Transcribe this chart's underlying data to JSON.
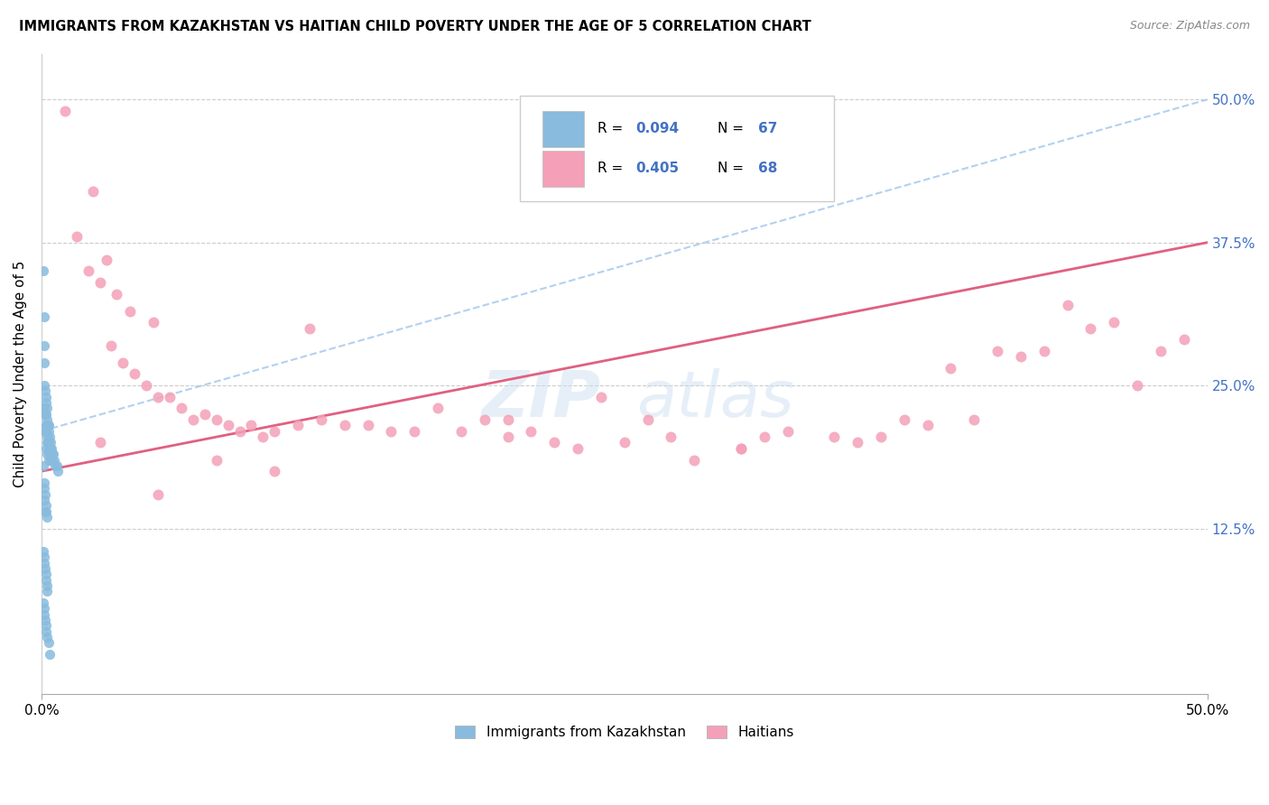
{
  "title": "IMMIGRANTS FROM KAZAKHSTAN VS HAITIAN CHILD POVERTY UNDER THE AGE OF 5 CORRELATION CHART",
  "source": "Source: ZipAtlas.com",
  "ylabel": "Child Poverty Under the Age of 5",
  "xlim": [
    0.0,
    0.5
  ],
  "ylim": [
    -0.02,
    0.54
  ],
  "ytick_labels": [
    "12.5%",
    "25.0%",
    "37.5%",
    "50.0%"
  ],
  "ytick_values": [
    0.125,
    0.25,
    0.375,
    0.5
  ],
  "color_blue": "#88bbdd",
  "color_pink": "#f4a0b8",
  "color_trendline_blue": "#99bbdd",
  "color_trendline_pink": "#e06080",
  "color_right_labels": "#4472c4",
  "kaz_x": [
    0.0008,
    0.001,
    0.001,
    0.0012,
    0.0012,
    0.0012,
    0.0015,
    0.0015,
    0.0015,
    0.0018,
    0.0018,
    0.002,
    0.002,
    0.002,
    0.002,
    0.0022,
    0.0022,
    0.0022,
    0.0025,
    0.0025,
    0.0025,
    0.0028,
    0.0028,
    0.003,
    0.003,
    0.003,
    0.0032,
    0.0032,
    0.0035,
    0.0035,
    0.0038,
    0.004,
    0.004,
    0.0042,
    0.0045,
    0.0048,
    0.005,
    0.0055,
    0.006,
    0.0065,
    0.007,
    0.0008,
    0.001,
    0.001,
    0.0012,
    0.0015,
    0.0015,
    0.0018,
    0.002,
    0.0022,
    0.0008,
    0.001,
    0.0012,
    0.0015,
    0.0018,
    0.002,
    0.0022,
    0.0025,
    0.0008,
    0.001,
    0.0012,
    0.0015,
    0.0018,
    0.002,
    0.0025,
    0.003,
    0.0035
  ],
  "kaz_y": [
    0.35,
    0.31,
    0.285,
    0.27,
    0.25,
    0.23,
    0.245,
    0.225,
    0.21,
    0.235,
    0.215,
    0.24,
    0.225,
    0.21,
    0.195,
    0.23,
    0.215,
    0.2,
    0.22,
    0.205,
    0.19,
    0.215,
    0.2,
    0.215,
    0.2,
    0.185,
    0.21,
    0.195,
    0.205,
    0.19,
    0.2,
    0.195,
    0.185,
    0.195,
    0.19,
    0.185,
    0.19,
    0.185,
    0.18,
    0.18,
    0.175,
    0.18,
    0.165,
    0.15,
    0.16,
    0.155,
    0.14,
    0.145,
    0.14,
    0.135,
    0.105,
    0.1,
    0.095,
    0.09,
    0.085,
    0.08,
    0.075,
    0.07,
    0.06,
    0.055,
    0.05,
    0.045,
    0.04,
    0.035,
    0.03,
    0.025,
    0.015
  ],
  "hai_x": [
    0.01,
    0.015,
    0.02,
    0.022,
    0.025,
    0.028,
    0.03,
    0.032,
    0.035,
    0.038,
    0.04,
    0.045,
    0.048,
    0.05,
    0.055,
    0.06,
    0.065,
    0.07,
    0.075,
    0.08,
    0.085,
    0.09,
    0.095,
    0.1,
    0.11,
    0.115,
    0.12,
    0.13,
    0.14,
    0.15,
    0.16,
    0.17,
    0.18,
    0.19,
    0.2,
    0.21,
    0.22,
    0.23,
    0.24,
    0.25,
    0.26,
    0.27,
    0.28,
    0.3,
    0.31,
    0.32,
    0.34,
    0.35,
    0.36,
    0.37,
    0.38,
    0.39,
    0.4,
    0.41,
    0.42,
    0.43,
    0.44,
    0.45,
    0.46,
    0.47,
    0.48,
    0.49,
    0.025,
    0.05,
    0.075,
    0.1,
    0.2,
    0.3
  ],
  "hai_y": [
    0.49,
    0.38,
    0.35,
    0.42,
    0.34,
    0.36,
    0.285,
    0.33,
    0.27,
    0.315,
    0.26,
    0.25,
    0.305,
    0.24,
    0.24,
    0.23,
    0.22,
    0.225,
    0.22,
    0.215,
    0.21,
    0.215,
    0.205,
    0.21,
    0.215,
    0.3,
    0.22,
    0.215,
    0.215,
    0.21,
    0.21,
    0.23,
    0.21,
    0.22,
    0.205,
    0.21,
    0.2,
    0.195,
    0.24,
    0.2,
    0.22,
    0.205,
    0.185,
    0.195,
    0.205,
    0.21,
    0.205,
    0.2,
    0.205,
    0.22,
    0.215,
    0.265,
    0.22,
    0.28,
    0.275,
    0.28,
    0.32,
    0.3,
    0.305,
    0.25,
    0.28,
    0.29,
    0.2,
    0.155,
    0.185,
    0.175,
    0.22,
    0.195
  ],
  "kaz_trend": [
    0.0,
    0.03,
    0.21,
    0.22
  ],
  "hai_trend_x0": 0.0,
  "hai_trend_y0": 0.175,
  "hai_trend_x1": 0.5,
  "hai_trend_y1": 0.375
}
